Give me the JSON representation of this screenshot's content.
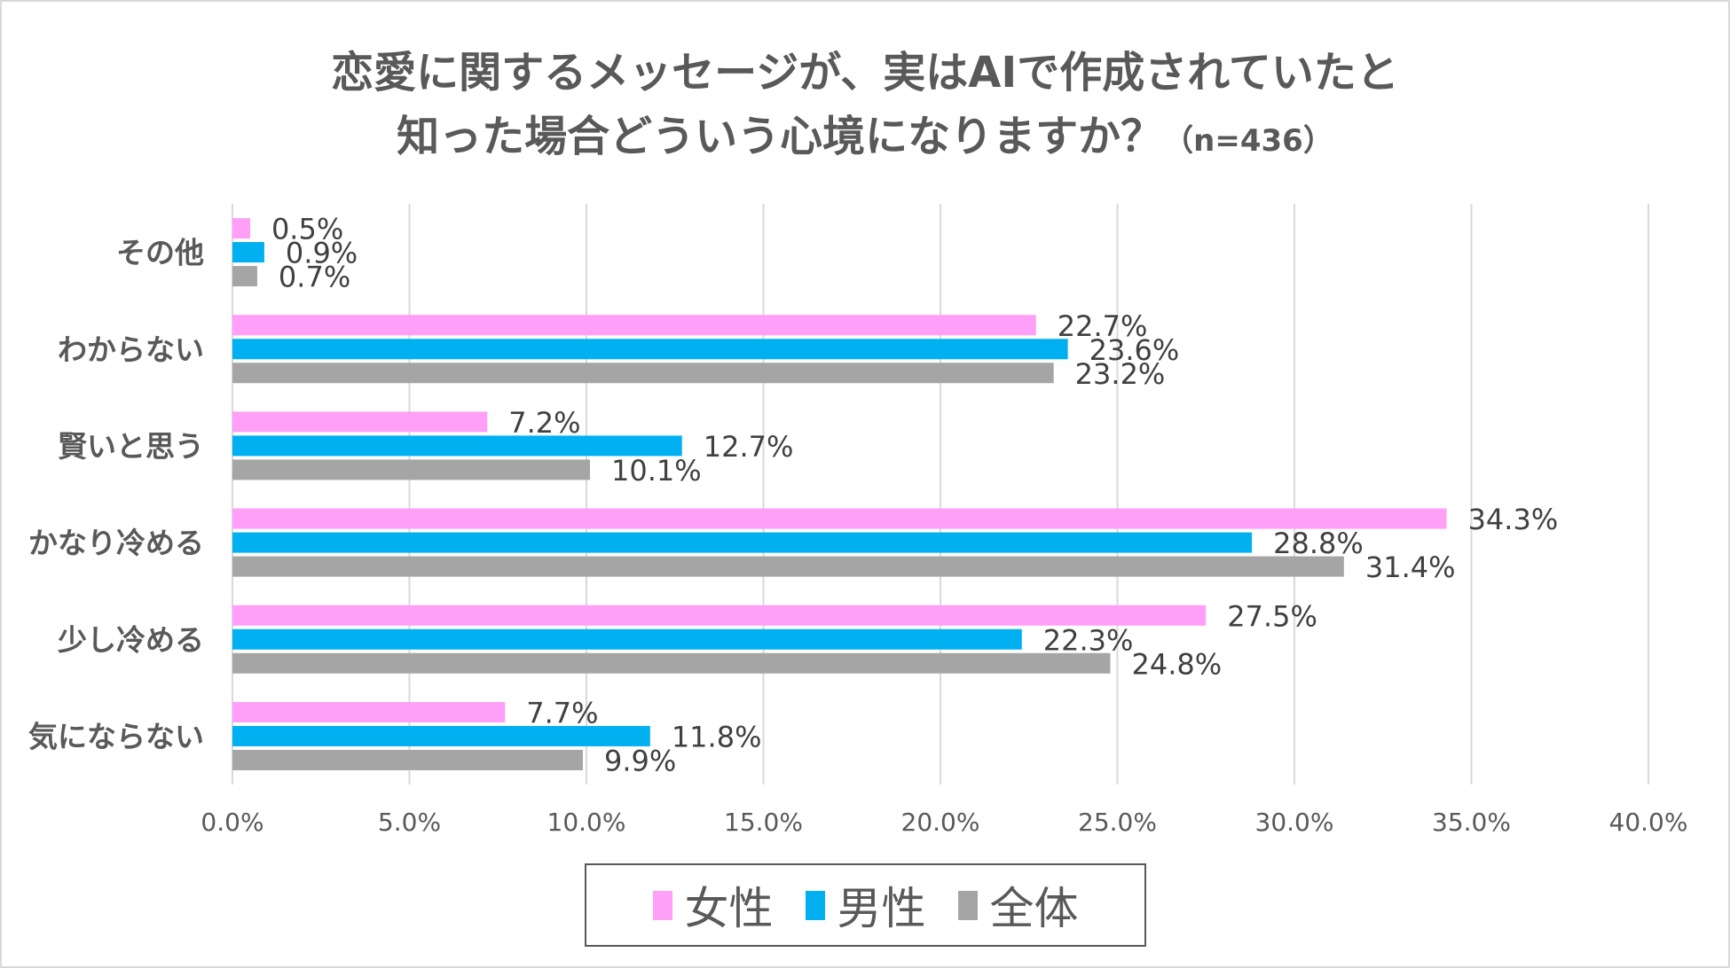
{
  "chart_data": {
    "type": "bar",
    "orientation": "horizontal",
    "title_line1": "恋愛に関するメッセージが、実はAIで作成されていたと",
    "title_line2": "知った場合どういう心境になりますか？",
    "title_n": "（n=436）",
    "categories": [
      "その他",
      "わからない",
      "賢いと思う",
      "かなり冷める",
      "少し冷める",
      "気にならない"
    ],
    "series": [
      {
        "name": "女性",
        "color": "#ff9ff7",
        "values": [
          0.5,
          22.7,
          7.2,
          34.3,
          27.5,
          7.7
        ]
      },
      {
        "name": "男性",
        "color": "#00b0f0",
        "values": [
          0.9,
          23.6,
          12.7,
          28.8,
          22.3,
          11.8
        ]
      },
      {
        "name": "全体",
        "color": "#a5a5a5",
        "values": [
          0.7,
          23.2,
          10.1,
          31.4,
          24.8,
          9.9
        ]
      }
    ],
    "xlim": [
      0,
      40
    ],
    "xticks": [
      "0.0%",
      "5.0%",
      "10.0%",
      "15.0%",
      "20.0%",
      "25.0%",
      "30.0%",
      "35.0%",
      "40.0%"
    ],
    "grid": true,
    "legend_position": "bottom"
  }
}
